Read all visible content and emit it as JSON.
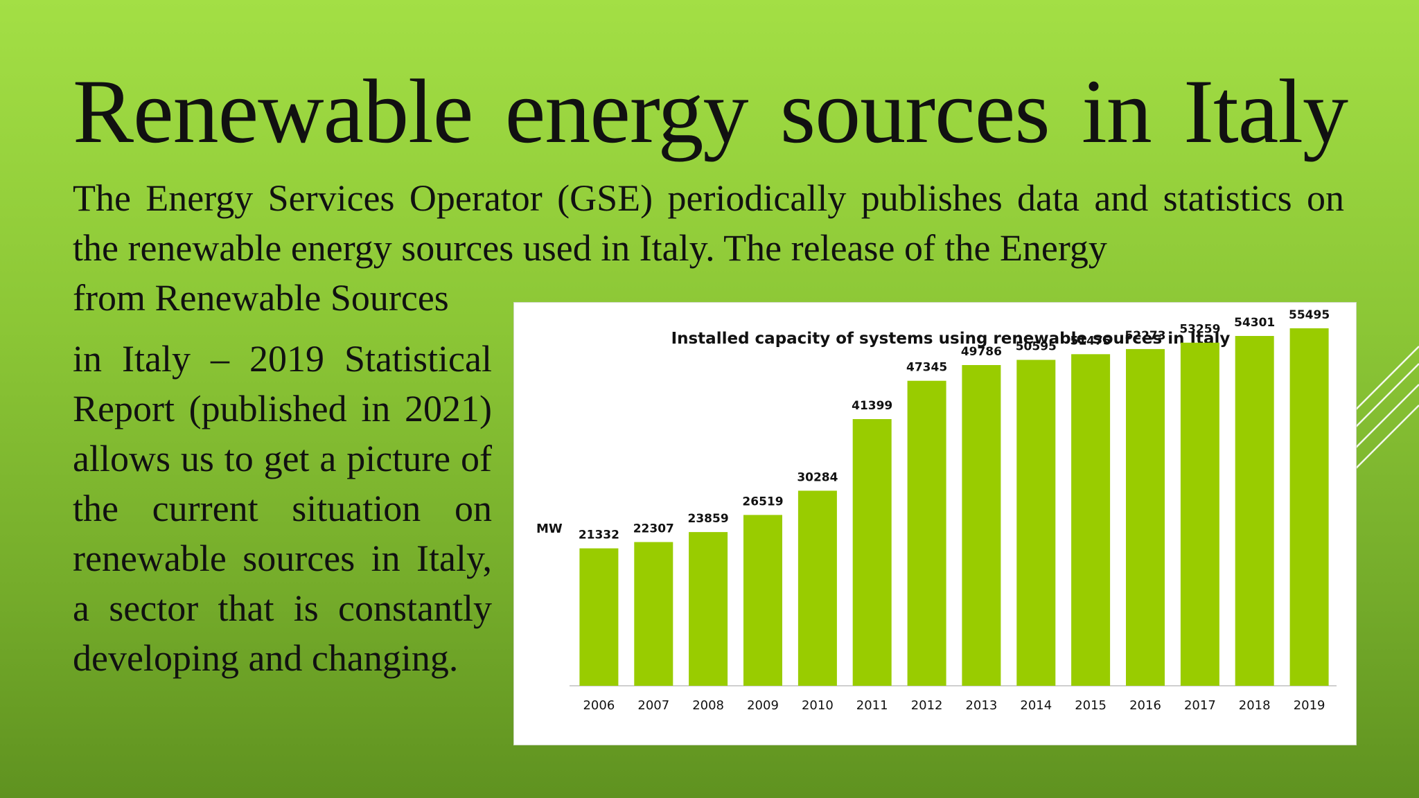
{
  "slide": {
    "title": "Renewable energy sources in Italy",
    "intro": "The Energy Services Operator (GSE) periodically publishes data and statistics on the renewable energy sources used in Italy. The release of the Energy",
    "intro_end": "from Renewable Sources",
    "body": "in Italy – 2019 Statistical Report (published in 2021) allows us to get a picture of the current situation on renewable sources in Italy, a sector that is constantly developing and changing."
  },
  "colors": {
    "bar": "#99cc00",
    "background_top": "#a3df45",
    "background_bottom": "#5f9220"
  },
  "chart_data": {
    "type": "bar",
    "title": "Installed capacity of systems using renewable sources in Italy",
    "ylabel": "MW",
    "categories": [
      "2006",
      "2007",
      "2008",
      "2009",
      "2010",
      "2011",
      "2012",
      "2013",
      "2014",
      "2015",
      "2016",
      "2017",
      "2018",
      "2019"
    ],
    "values": [
      21332,
      22307,
      23859,
      26519,
      30284,
      41399,
      47345,
      49786,
      50595,
      51475,
      52273,
      53259,
      54301,
      55495
    ],
    "ylim": [
      0,
      60000
    ],
    "data_labels": true,
    "grid": false,
    "legend": "none"
  }
}
